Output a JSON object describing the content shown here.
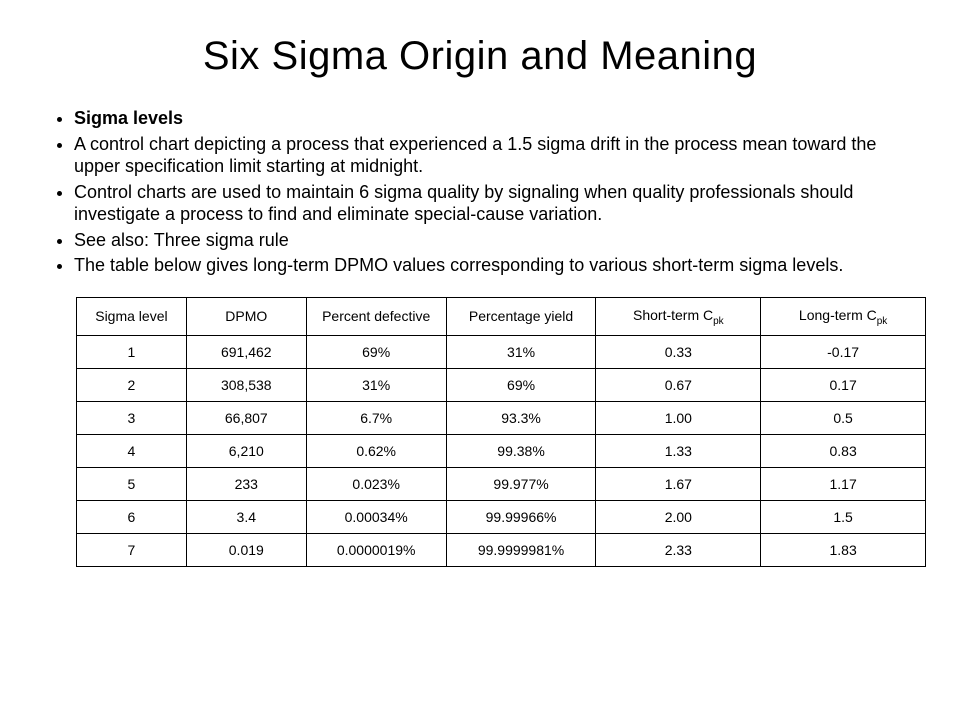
{
  "title": "Six Sigma Origin and Meaning",
  "bullets": [
    "Sigma levels",
    "A control chart depicting a process that experienced a 1.5 sigma drift in the process mean toward the upper specification limit starting at midnight.",
    "Control charts are used to maintain 6 sigma quality by signaling when quality professionals should investigate a process to find and eliminate special-cause variation.",
    "See also: Three sigma rule",
    "The table below gives long-term DPMO values corresponding to various short-term sigma levels."
  ],
  "table": {
    "columns": [
      "Sigma level",
      "DPMO",
      "Percent defective",
      "Percentage yield",
      "Short-term C",
      "Long-term C"
    ],
    "column_sub": [
      "",
      "",
      "",
      "",
      "pk",
      "pk"
    ],
    "column_widths": [
      "110px",
      "120px",
      "140px",
      "150px",
      "165px",
      "165px"
    ],
    "rows": [
      [
        "1",
        "691,462",
        "69%",
        "31%",
        "0.33",
        "-0.17"
      ],
      [
        "2",
        "308,538",
        "31%",
        "69%",
        "0.67",
        "0.17"
      ],
      [
        "3",
        "66,807",
        "6.7%",
        "93.3%",
        "1.00",
        "0.5"
      ],
      [
        "4",
        "6,210",
        "0.62%",
        "99.38%",
        "1.33",
        "0.83"
      ],
      [
        "5",
        "233",
        "0.023%",
        "99.977%",
        "1.67",
        "1.17"
      ],
      [
        "6",
        "3.4",
        "0.00034%",
        "99.99966%",
        "2.00",
        "1.5"
      ],
      [
        "7",
        "0.019",
        "0.0000019%",
        "99.9999981%",
        "2.33",
        "1.83"
      ]
    ]
  },
  "style": {
    "background_color": "#ffffff",
    "text_color": "#000000",
    "border_color": "#000000",
    "title_fontsize": 40,
    "body_fontsize": 18,
    "table_fontsize": 14,
    "font_family": "Arial"
  }
}
